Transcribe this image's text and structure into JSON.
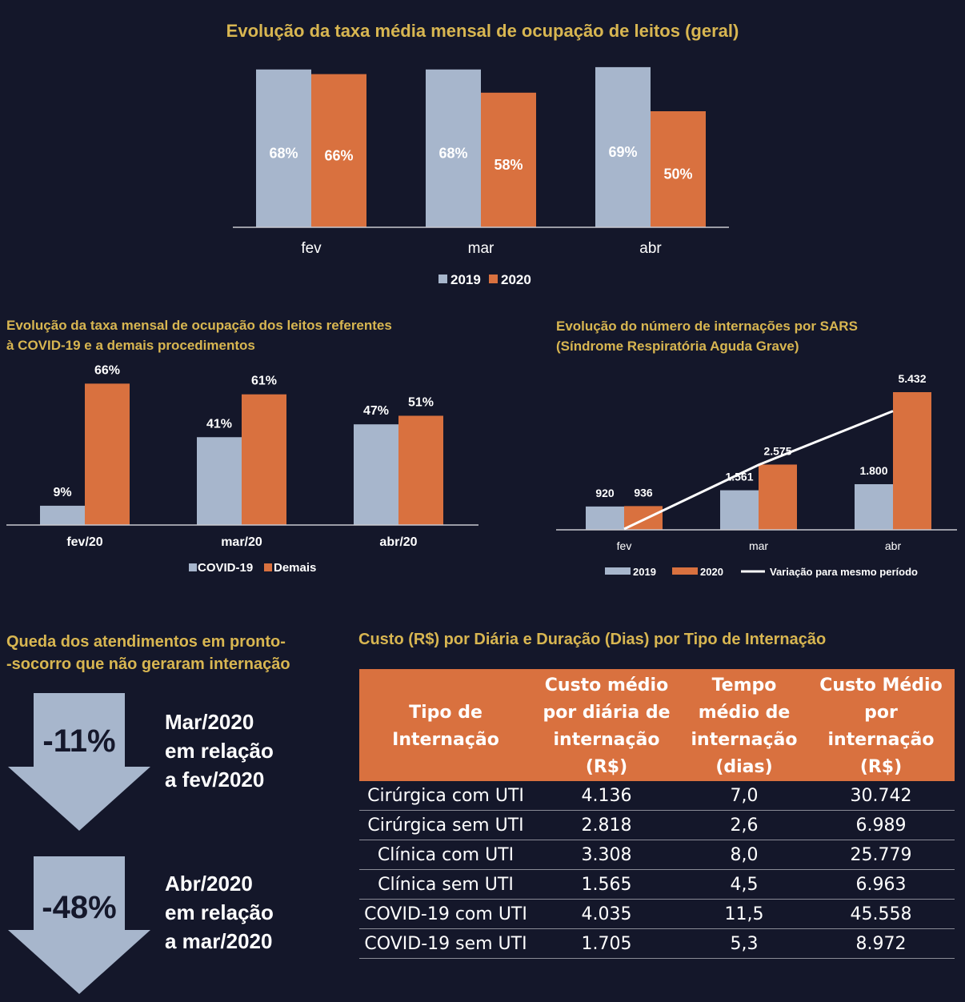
{
  "colors": {
    "c2019": "#a7b6cc",
    "c2020": "#d9713f",
    "gold": "#d8b651",
    "background": "#14172a"
  },
  "chart_data": [
    {
      "type": "bar",
      "title": "Evolução da taxa média mensal de ocupação de leitos (geral)",
      "categories": [
        "fev",
        "mar",
        "abr"
      ],
      "series": [
        {
          "name": "2019",
          "values": [
            68,
            68,
            69
          ],
          "labels": [
            "68%",
            "68%",
            "69%"
          ]
        },
        {
          "name": "2020",
          "values": [
            66,
            58,
            50
          ],
          "labels": [
            "66%",
            "58%",
            "50%"
          ]
        }
      ],
      "ylim": [
        0,
        70
      ],
      "legend": "bottom"
    },
    {
      "type": "bar",
      "title_line1": "Evolução da taxa mensal de ocupação dos leitos referentes",
      "title_line2": "à COVID-19 e a demais procedimentos",
      "categories": [
        "fev/20",
        "mar/20",
        "abr/20"
      ],
      "series": [
        {
          "name": "COVID-19",
          "values": [
            9,
            41,
            47
          ],
          "labels": [
            "9%",
            "41%",
            "47%"
          ]
        },
        {
          "name": "Demais",
          "values": [
            66,
            61,
            51
          ],
          "labels": [
            "66%",
            "61%",
            "51%"
          ]
        }
      ],
      "ylim": [
        0,
        70
      ],
      "legend": "bottom"
    },
    {
      "type": "bar",
      "title_line1": "Evolução do número de internações por SARS",
      "title_line2": "(Síndrome Respiratória Aguda Grave)",
      "categories": [
        "fev",
        "mar",
        "abr"
      ],
      "series": [
        {
          "name": "2019",
          "values": [
            920,
            1561,
            1800
          ],
          "labels": [
            "920",
            "1.561",
            "1.800"
          ]
        },
        {
          "name": "2020",
          "values": [
            936,
            2575,
            5432
          ],
          "labels": [
            "936",
            "2.575",
            "5.432"
          ]
        }
      ],
      "line_series": {
        "name": "Variação para mesmo período",
        "values": [
          2,
          165,
          302
        ]
      },
      "ylim": [
        0,
        5900
      ],
      "line_ylim": [
        0,
        350
      ],
      "legend": "bottom"
    }
  ],
  "drop": {
    "title_line1": "Queda dos atendimentos em pronto-",
    "title_line2": "-socorro que não geraram internação",
    "items": [
      {
        "value": "-11%",
        "line1": "Mar/2020",
        "line2": "em relação",
        "line3": "a fev/2020"
      },
      {
        "value": "-48%",
        "line1": "Abr/2020",
        "line2": "em relação",
        "line3": "a mar/2020"
      }
    ]
  },
  "table": {
    "title": "Custo (R$) por Diária e Duração (Dias) por Tipo de Internação",
    "headers": [
      "Tipo de Internação",
      "Custo médio por diária de internação (R$)",
      "Tempo médio de internação (dias)",
      "Custo Médio por internação (R$)"
    ],
    "rows": [
      [
        "Cirúrgica com UTI",
        "4.136",
        "7,0",
        "30.742"
      ],
      [
        "Cirúrgica sem UTI",
        "2.818",
        "2,6",
        "6.989"
      ],
      [
        "Clínica com UTI",
        "3.308",
        "8,0",
        "25.779"
      ],
      [
        "Clínica sem UTI",
        "1.565",
        "4,5",
        "6.963"
      ],
      [
        "COVID-19 com UTI",
        "4.035",
        "11,5",
        "45.558"
      ],
      [
        "COVID-19 sem UTI",
        "1.705",
        "5,3",
        "8.972"
      ]
    ]
  }
}
